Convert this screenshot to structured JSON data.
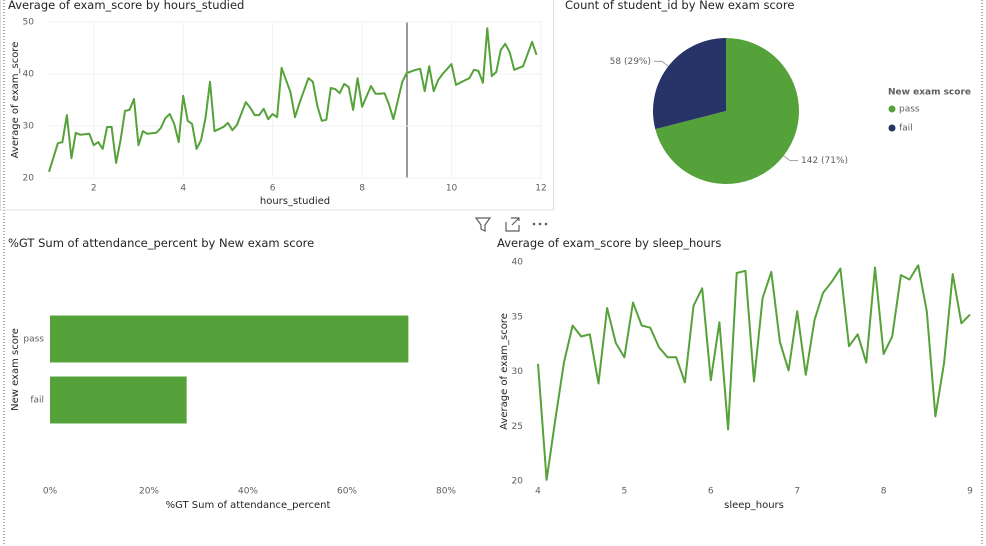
{
  "chart_data": [
    {
      "type": "line",
      "title": "Average of exam_score by hours_studied",
      "x_label": "hours_studied",
      "y_label": "Average of exam_score",
      "color": "#56a23a",
      "grid": true,
      "xlim": [
        1,
        12
      ],
      "ylim": [
        20,
        50
      ],
      "xticks": [
        2,
        4,
        6,
        8,
        10,
        12
      ],
      "yticks": [
        20,
        30,
        40,
        50
      ],
      "x": [
        1.0,
        1.2,
        1.3,
        1.4,
        1.5,
        1.6,
        1.7,
        1.9,
        2.0,
        2.1,
        2.2,
        2.3,
        2.4,
        2.5,
        2.6,
        2.7,
        2.8,
        2.9,
        3.0,
        3.1,
        3.2,
        3.4,
        3.5,
        3.6,
        3.7,
        3.8,
        3.9,
        4.0,
        4.1,
        4.2,
        4.3,
        4.4,
        4.5,
        4.6,
        4.7,
        4.9,
        5.0,
        5.1,
        5.2,
        5.4,
        5.5,
        5.6,
        5.7,
        5.8,
        5.9,
        6.0,
        6.1,
        6.2,
        6.4,
        6.5,
        6.6,
        6.8,
        6.9,
        7.0,
        7.1,
        7.2,
        7.3,
        7.4,
        7.5,
        7.6,
        7.7,
        7.8,
        7.9,
        8.0,
        8.2,
        8.3,
        8.4,
        8.5,
        8.6,
        8.7,
        8.9,
        9.0,
        9.2,
        9.3,
        9.4,
        9.5,
        9.6,
        9.7,
        9.8,
        10.0,
        10.1,
        10.3,
        10.4,
        10.5,
        10.6,
        10.7,
        10.8,
        10.9,
        11.0,
        11.1,
        11.2,
        11.3,
        11.4,
        11.6,
        11.8,
        11.9
      ],
      "values": [
        21.2,
        26.7,
        26.9,
        32.1,
        23.8,
        28.7,
        28.3,
        28.5,
        26.3,
        26.9,
        25.6,
        29.8,
        29.8,
        22.9,
        27.3,
        32.9,
        33.1,
        35.2,
        26.3,
        29.0,
        28.5,
        28.7,
        29.6,
        31.5,
        32.3,
        30.4,
        26.9,
        35.8,
        31.0,
        30.4,
        25.6,
        27.3,
        31.5,
        38.5,
        29.0,
        29.8,
        30.6,
        29.2,
        30.2,
        34.6,
        33.5,
        32.1,
        32.1,
        33.3,
        31.3,
        32.3,
        31.7,
        41.2,
        36.5,
        31.7,
        34.4,
        39.2,
        38.5,
        33.8,
        31.0,
        31.2,
        37.3,
        37.1,
        36.3,
        38.1,
        37.5,
        33.1,
        39.2,
        33.7,
        37.7,
        36.2,
        36.2,
        36.3,
        34.2,
        31.3,
        38.5,
        40.2,
        40.8,
        41.0,
        36.7,
        41.5,
        36.7,
        38.8,
        40.0,
        41.9,
        37.9,
        38.8,
        39.2,
        40.8,
        40.6,
        38.3,
        48.8,
        39.6,
        40.4,
        44.6,
        45.8,
        44.2,
        40.8,
        41.5,
        46.2,
        43.7
      ]
    },
    {
      "type": "pie",
      "title": "Count of student_id by New exam score",
      "legend_title": "New exam score",
      "categories": [
        "pass",
        "fail"
      ],
      "values": [
        142,
        58
      ],
      "value_labels": [
        "142 (71%)",
        "58 (29%)"
      ],
      "colors": [
        "#56a23a",
        "#283468"
      ]
    },
    {
      "type": "bar",
      "orientation": "horizontal",
      "title": "%GT Sum of attendance_percent by New exam score",
      "x_label": "%GT Sum of attendance_percent",
      "y_label": "New exam score",
      "color": "#56a23a",
      "categories": [
        "pass",
        "fail"
      ],
      "values": [
        72.4,
        27.6
      ],
      "xlim": [
        0,
        80
      ],
      "xticks": [
        {
          "value": 0,
          "label": "0%"
        },
        {
          "value": 20,
          "label": "20%"
        },
        {
          "value": 40,
          "label": "40%"
        },
        {
          "value": 60,
          "label": "60%"
        },
        {
          "value": 80,
          "label": "80%"
        }
      ]
    },
    {
      "type": "line",
      "title": "Average of exam_score by sleep_hours",
      "x_label": "sleep_hours",
      "y_label": "Average of exam_score",
      "color": "#56a23a",
      "grid": false,
      "xlim": [
        4,
        9
      ],
      "ylim": [
        20,
        40
      ],
      "xticks": [
        4,
        5,
        6,
        7,
        8,
        9
      ],
      "yticks": [
        20,
        25,
        30,
        35,
        40
      ],
      "x": [
        4.0,
        4.1,
        4.2,
        4.3,
        4.4,
        4.5,
        4.6,
        4.7,
        4.8,
        4.9,
        5.0,
        5.1,
        5.2,
        5.3,
        5.4,
        5.5,
        5.6,
        5.7,
        5.8,
        5.9,
        6.0,
        6.1,
        6.2,
        6.3,
        6.4,
        6.5,
        6.6,
        6.7,
        6.8,
        6.9,
        7.0,
        7.1,
        7.2,
        7.3,
        7.4,
        7.5,
        7.6,
        7.7,
        7.8,
        7.9,
        8.0,
        8.1,
        8.2,
        8.3,
        8.4,
        8.5,
        8.6,
        8.7,
        8.8,
        8.9,
        9.0
      ],
      "values": [
        30.7,
        20.1,
        25.6,
        30.8,
        34.2,
        33.2,
        33.4,
        28.9,
        35.8,
        32.6,
        31.3,
        36.3,
        34.2,
        34.0,
        32.2,
        31.3,
        31.3,
        29.0,
        36.0,
        37.6,
        29.2,
        34.5,
        24.7,
        39.0,
        39.2,
        29.1,
        36.7,
        39.1,
        32.7,
        30.1,
        35.5,
        29.7,
        34.7,
        37.2,
        38.2,
        39.4,
        32.3,
        33.4,
        30.8,
        39.5,
        31.6,
        33.2,
        38.8,
        38.4,
        39.7,
        35.5,
        25.9,
        30.8,
        38.9,
        34.4,
        35.2
      ]
    }
  ]
}
